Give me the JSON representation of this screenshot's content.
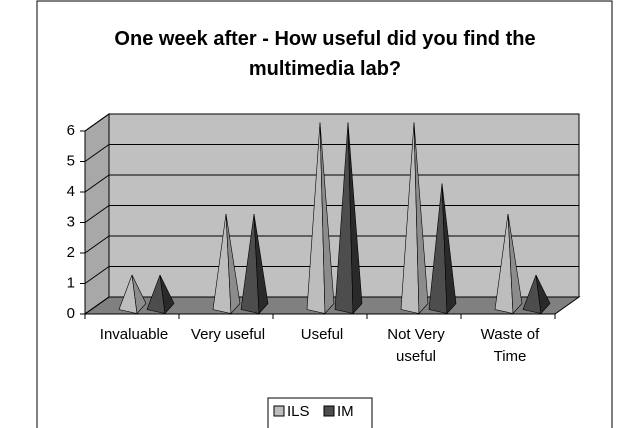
{
  "chart_data": {
    "type": "pyramid3d",
    "title": "One week after - How useful did you find the multimedia lab?",
    "categories": [
      "Invaluable",
      "Very useful",
      "Useful",
      "Not Very useful",
      "Waste of Time"
    ],
    "series": [
      {
        "name": "ILS",
        "color": "#bdbdbd",
        "values": [
          1,
          3,
          6,
          6,
          3
        ]
      },
      {
        "name": "IM",
        "color": "#4d4d4d",
        "values": [
          1,
          3,
          6,
          4,
          1
        ]
      }
    ],
    "ylim": [
      0,
      6
    ],
    "yticks": [
      0,
      1,
      2,
      3,
      4,
      5,
      6
    ],
    "grid": true,
    "legend": "bottom"
  }
}
